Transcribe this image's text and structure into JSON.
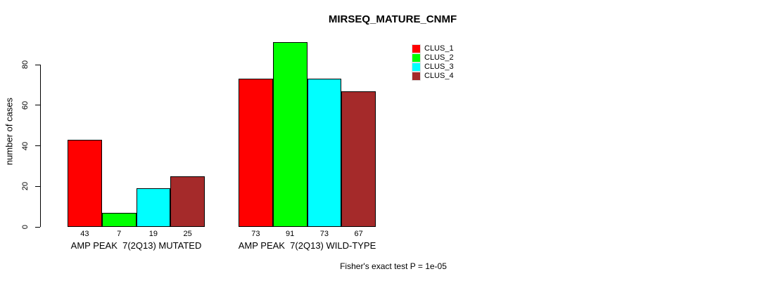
{
  "chart_data": {
    "type": "bar",
    "title": "MIRSEQ_MATURE_CNMF",
    "ylabel": "number of cases",
    "xlabel": "",
    "ylim": [
      0,
      80
    ],
    "yticks": [
      0,
      20,
      40,
      60,
      80
    ],
    "grid": false,
    "legend_position": "top-right",
    "background_color": "#ffffff",
    "bar_border_color": "#000000",
    "categories": [
      "AMP PEAK  7(2Q13) MUTATED",
      "AMP PEAK  7(2Q13) WILD-TYPE"
    ],
    "series": [
      {
        "name": "CLUS_1",
        "color": "#FF0000",
        "values": [
          43,
          73
        ]
      },
      {
        "name": "CLUS_2",
        "color": "#00FF00",
        "values": [
          7,
          91
        ]
      },
      {
        "name": "CLUS_3",
        "color": "#00FFFF",
        "values": [
          19,
          73
        ]
      },
      {
        "name": "CLUS_4",
        "color": "#A52A2A",
        "values": [
          25,
          67
        ]
      }
    ],
    "bar_value_labels": [
      [
        43,
        7,
        19,
        25
      ],
      [
        73,
        91,
        73,
        67
      ]
    ],
    "annotation": "Fisher's exact test P = 1e-05"
  }
}
